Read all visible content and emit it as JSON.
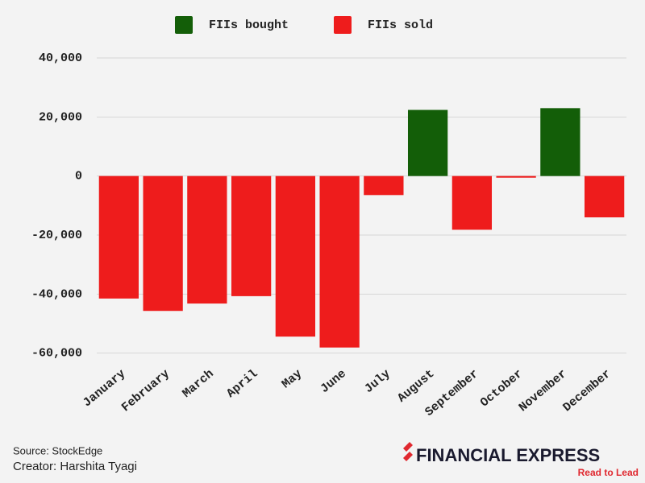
{
  "chart_data": {
    "type": "bar",
    "categories": [
      "January",
      "February",
      "March",
      "April",
      "May",
      "June",
      "July",
      "August",
      "September",
      "October",
      "November",
      "December"
    ],
    "series": [
      {
        "name": "FIIs bought",
        "color": "#135e08",
        "values": [
          null,
          null,
          null,
          null,
          null,
          null,
          null,
          22400,
          null,
          null,
          23000,
          null
        ]
      },
      {
        "name": "FIIs sold",
        "color": "#ee1c1c",
        "values": [
          -41500,
          -45700,
          -43200,
          -40700,
          -54400,
          -58100,
          -6450,
          null,
          -18200,
          -560,
          null,
          -14000
        ]
      }
    ],
    "ylim": [
      -62000,
      43000
    ],
    "yticks": [
      {
        "value": -60000,
        "label": "-60,000"
      },
      {
        "value": -40000,
        "label": "-40,000"
      },
      {
        "value": -20000,
        "label": "-20,000"
      },
      0,
      {
        "value": 20000,
        "label": "20,000"
      },
      {
        "value": 40000,
        "label": "40,000"
      }
    ],
    "grid": true,
    "legend": "top",
    "notes": [
      "Source: StockEdge",
      "Creator: Harshita Tyagi"
    ],
    "logo": "FINANCIAL EXPRESS",
    "tagline": "Read to Lead"
  }
}
